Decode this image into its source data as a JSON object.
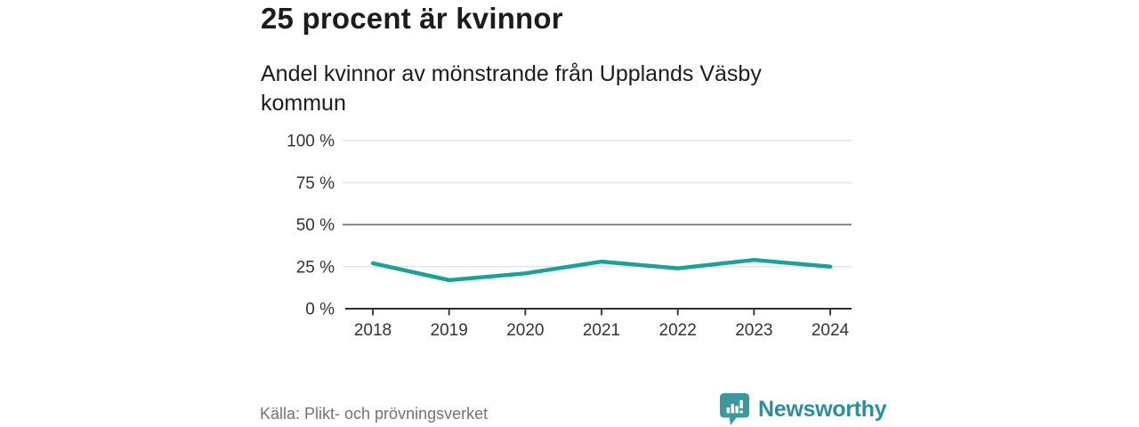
{
  "header": {
    "title": "25 procent är kvinnor",
    "subtitle_line1": "Andel kvinnor av mönstrande från Upplands Väsby",
    "subtitle_line2": "kommun"
  },
  "chart_data": {
    "type": "line",
    "title": "25 procent är kvinnor",
    "subtitle": "Andel kvinnor av mönstrande från Upplands Väsby kommun",
    "x": [
      "2018",
      "2019",
      "2020",
      "2021",
      "2022",
      "2023",
      "2024"
    ],
    "values": [
      27,
      17,
      21,
      28,
      24,
      29,
      25
    ],
    "unit": "%",
    "ylim": [
      0,
      100
    ],
    "yticks": [
      0,
      25,
      50,
      75,
      100
    ],
    "ytick_labels": [
      "0 %",
      "25 %",
      "50 %",
      "75 %",
      "100 %"
    ],
    "grid": true,
    "emphasized_gridline": 50,
    "legend": "none",
    "line_color": "#17a398"
  },
  "footer": {
    "source": "Källa: Plikt- och prövningsverket",
    "brand": "Newsworthy"
  },
  "colors": {
    "accent": "#17a398",
    "brand_teal": "#3b989b",
    "brand_text": "#2c8e9a",
    "text_dark": "#1c1c1c",
    "axis_text": "#333333",
    "grid_light": "#e0e0e0",
    "grid_dark": "#757575",
    "axis_line": "#2e2e2e",
    "source_text": "#737373"
  }
}
